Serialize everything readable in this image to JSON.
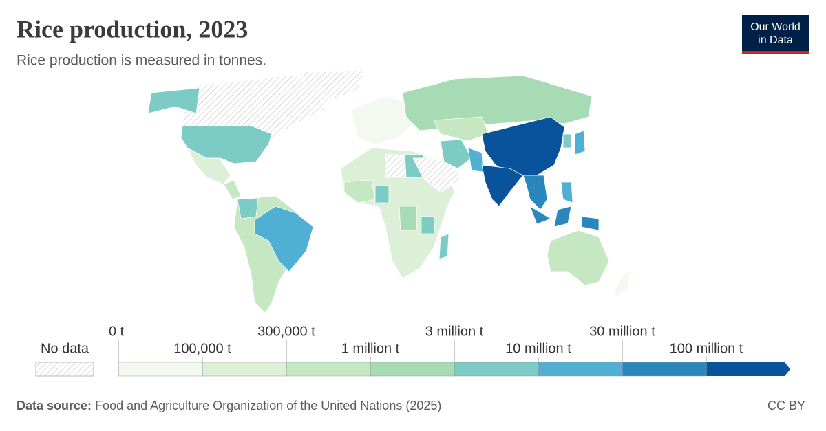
{
  "header": {
    "title": "Rice production, 2023",
    "subtitle": "Rice production is measured in tonnes.",
    "logo": [
      "Our World",
      "in Data"
    ]
  },
  "legend": {
    "no_data": "No data",
    "bins": [
      {
        "value": 0,
        "label": "0 t"
      },
      {
        "value": 100000,
        "label": "100,000 t"
      },
      {
        "value": 300000,
        "label": "300,000 t"
      },
      {
        "value": 1000000,
        "label": "1 million t"
      },
      {
        "value": 3000000,
        "label": "3 million t"
      },
      {
        "value": 10000000,
        "label": "10 million t"
      },
      {
        "value": 30000000,
        "label": "30 million t"
      },
      {
        "value": 100000000,
        "label": "100 million t"
      }
    ],
    "colors": [
      "#f3f9f1",
      "#dcf0d8",
      "#c5e7c1",
      "#a7dbb3",
      "#7ccbc4",
      "#4fb0d3",
      "#2a87bd",
      "#08539c"
    ]
  },
  "footer": {
    "source_label": "Data source:",
    "source": "Food and Agriculture Organization of the United Nations (2025)",
    "license": "CC BY"
  }
}
